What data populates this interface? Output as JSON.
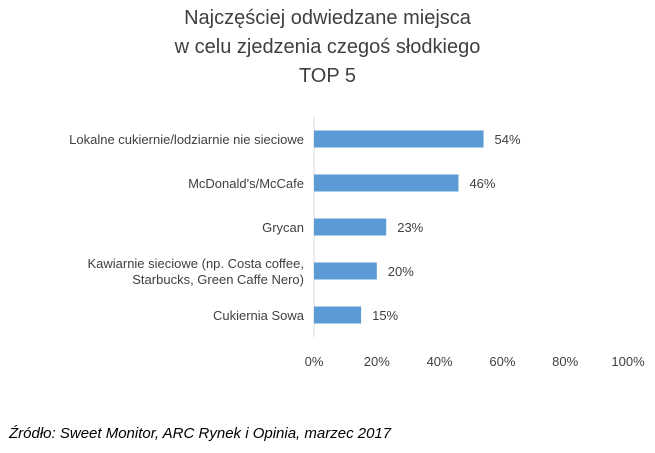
{
  "chart_data": {
    "type": "bar",
    "orientation": "horizontal",
    "title_lines": [
      "Najczęściej odwiedzane miejsca",
      "w celu zjedzenia czegoś słodkiego",
      "TOP 5"
    ],
    "categories": [
      [
        "Lokalne cukiernie/lodziarnie nie sieciowe"
      ],
      [
        "McDonald's/McCafe"
      ],
      [
        "Grycan"
      ],
      [
        "Kawiarnie sieciowe (np. Costa coffee,",
        "Starbucks, Green Caffe Nero)"
      ],
      [
        "Cukiernia Sowa"
      ]
    ],
    "values": [
      54,
      46,
      23,
      20,
      15
    ],
    "data_labels": [
      "54%",
      "46%",
      "23%",
      "20%",
      "15%"
    ],
    "x_ticks": [
      "0%",
      "20%",
      "40%",
      "60%",
      "80%",
      "100%"
    ],
    "xlim": [
      0,
      100
    ],
    "grid": false,
    "legend": "none",
    "bar_color": "#5B9BD5",
    "axis_line_color": "#D9D9D9"
  },
  "source": "Źródło: Sweet Monitor, ARC Rynek i Opinia, marzec 2017"
}
